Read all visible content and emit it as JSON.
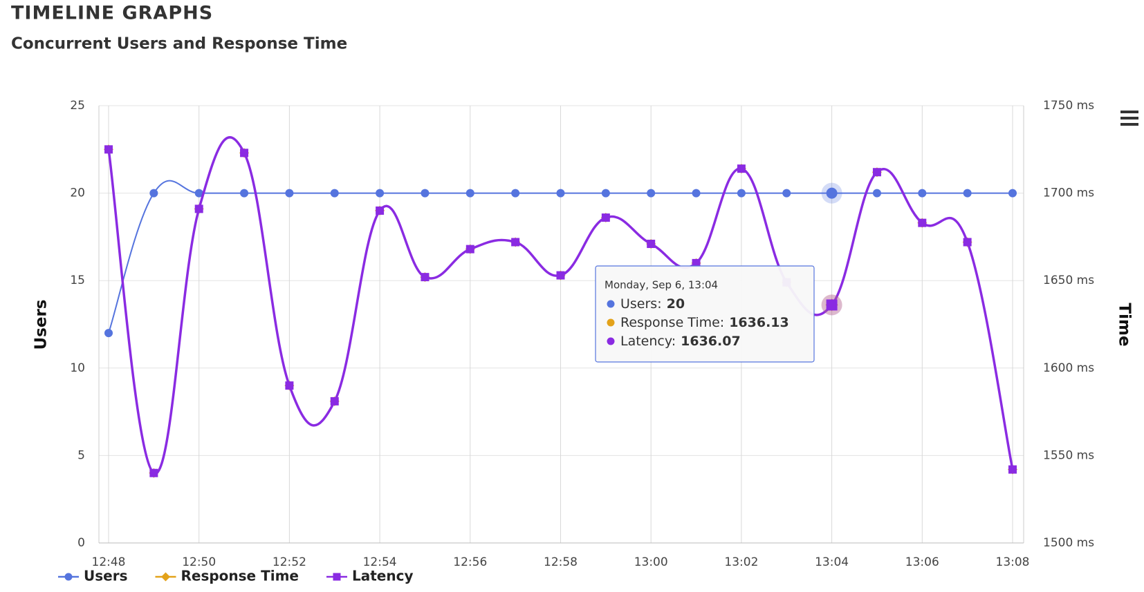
{
  "header": {
    "title": "TIMELINE GRAPHS",
    "subtitle": "Concurrent Users and Response Time"
  },
  "chart_data": {
    "type": "line",
    "categories": [
      "12:48",
      null,
      "12:50",
      null,
      "12:52",
      null,
      "12:54",
      null,
      "12:56",
      null,
      "12:58",
      null,
      "13:00",
      null,
      "13:02",
      null,
      "13:04",
      null,
      "13:06",
      null,
      "13:08"
    ],
    "y_label": "Users",
    "y2_label": "Time",
    "ylim": [
      0,
      25
    ],
    "yticks": [
      0,
      5,
      10,
      15,
      20,
      25
    ],
    "y2lim": [
      1500,
      1750
    ],
    "y2ticks": [
      {
        "value": 1500,
        "label": "1500 ms"
      },
      {
        "value": 1550,
        "label": "1550 ms"
      },
      {
        "value": 1600,
        "label": "1600 ms"
      },
      {
        "value": 1650,
        "label": "1650 ms"
      },
      {
        "value": 1700,
        "label": "1700 ms"
      },
      {
        "value": 1750,
        "label": "1750 ms"
      }
    ],
    "grid": true,
    "smooth": true,
    "legend": "bottom-left",
    "series": [
      {
        "name": "Users",
        "color": "#5574de",
        "marker": "circle",
        "values": [
          12,
          20,
          20,
          20,
          20,
          20,
          20,
          20,
          20,
          20,
          20,
          20,
          20,
          20,
          20,
          20,
          20,
          20,
          20,
          20,
          20
        ]
      },
      {
        "name": "Response Time",
        "color": "#e3a21a",
        "marker": "diamond",
        "axis": "y2",
        "values": [
          1725,
          1540,
          1691,
          1723,
          1590,
          1581,
          1690,
          1652,
          1668,
          1672,
          1653,
          1686,
          1671,
          1660,
          1714,
          1649,
          1636.13,
          1712,
          1683,
          1672,
          1542
        ]
      },
      {
        "name": "Latency",
        "color": "#8a2be2",
        "marker": "square",
        "axis": "y2",
        "values": [
          1725,
          1540,
          1691,
          1723,
          1590,
          1581,
          1690,
          1652,
          1668,
          1672,
          1653,
          1686,
          1671,
          1660,
          1714,
          1649,
          1636.07,
          1712,
          1683,
          1672,
          1542
        ]
      }
    ],
    "tooltip": {
      "date": "Monday, Sep 6, 13:04",
      "labels": [
        "Users:",
        "Response Time:",
        "Latency:"
      ]
    }
  }
}
